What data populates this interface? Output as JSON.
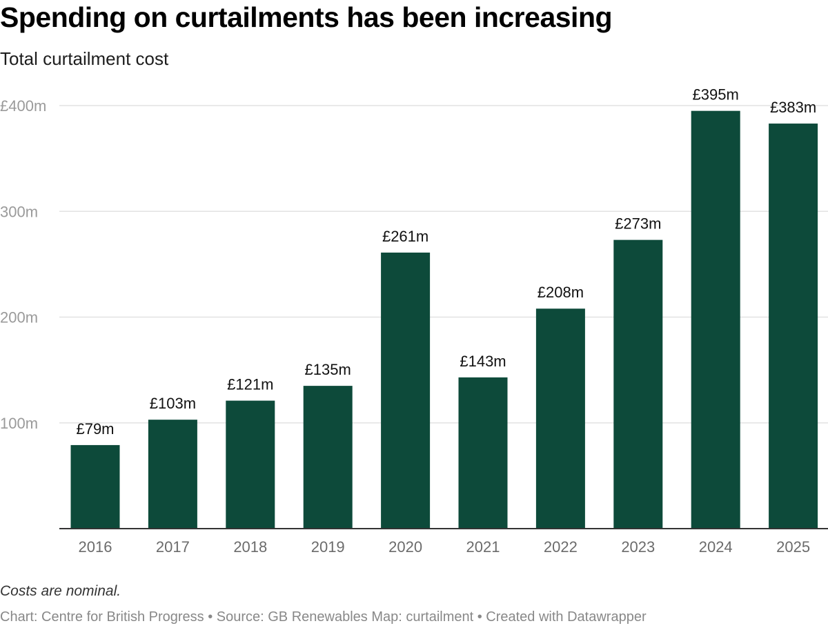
{
  "header": {
    "title": "Spending on curtailments has been increasing",
    "subtitle": "Total curtailment cost"
  },
  "footer": {
    "note": "Costs are nominal.",
    "credits": "Chart: Centre for British Progress • Source: GB Renewables Map: curtailment • Created with Datawrapper"
  },
  "chart_data": {
    "type": "bar",
    "title": "Spending on curtailments has been increasing",
    "subtitle": "Total curtailment cost",
    "categories": [
      "2016",
      "2017",
      "2018",
      "2019",
      "2020",
      "2021",
      "2022",
      "2023",
      "2024",
      "2025"
    ],
    "values": [
      79,
      103,
      121,
      135,
      261,
      143,
      208,
      273,
      395,
      383
    ],
    "data_labels": [
      "£79m",
      "£103m",
      "£121m",
      "£135m",
      "£261m",
      "£143m",
      "£208m",
      "£273m",
      "£395m",
      "£383m"
    ],
    "y_ticks": [
      100,
      200,
      300,
      400
    ],
    "y_tick_labels": [
      "100m",
      "200m",
      "300m",
      "£400m"
    ],
    "ylim": [
      0,
      400
    ],
    "grid": true,
    "bar_color": "#0d4a3a",
    "grid_color": "#e2e2e2",
    "xlabel": "",
    "ylabel": ""
  }
}
